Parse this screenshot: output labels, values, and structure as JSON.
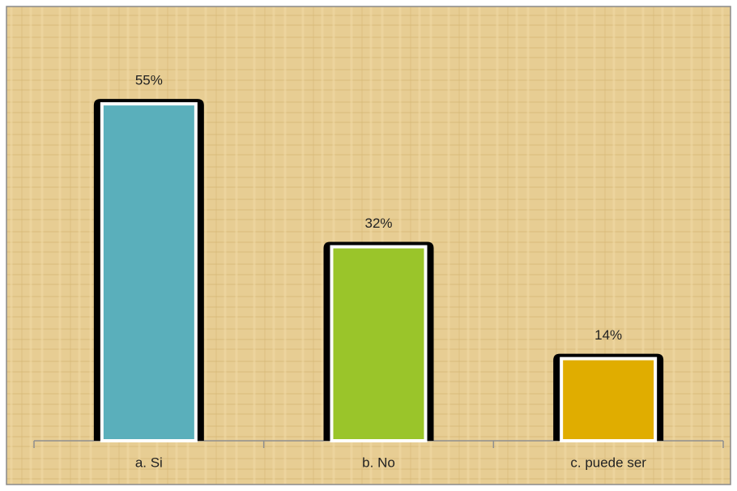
{
  "chart_data": {
    "type": "bar",
    "categories": [
      "a. Si",
      "b. No",
      "c. puede ser"
    ],
    "values": [
      55,
      32,
      14
    ],
    "value_labels": [
      "55%",
      "32%",
      "14%"
    ],
    "colors": [
      "#5aafbb",
      "#9ac52a",
      "#e0ad00"
    ]
  }
}
